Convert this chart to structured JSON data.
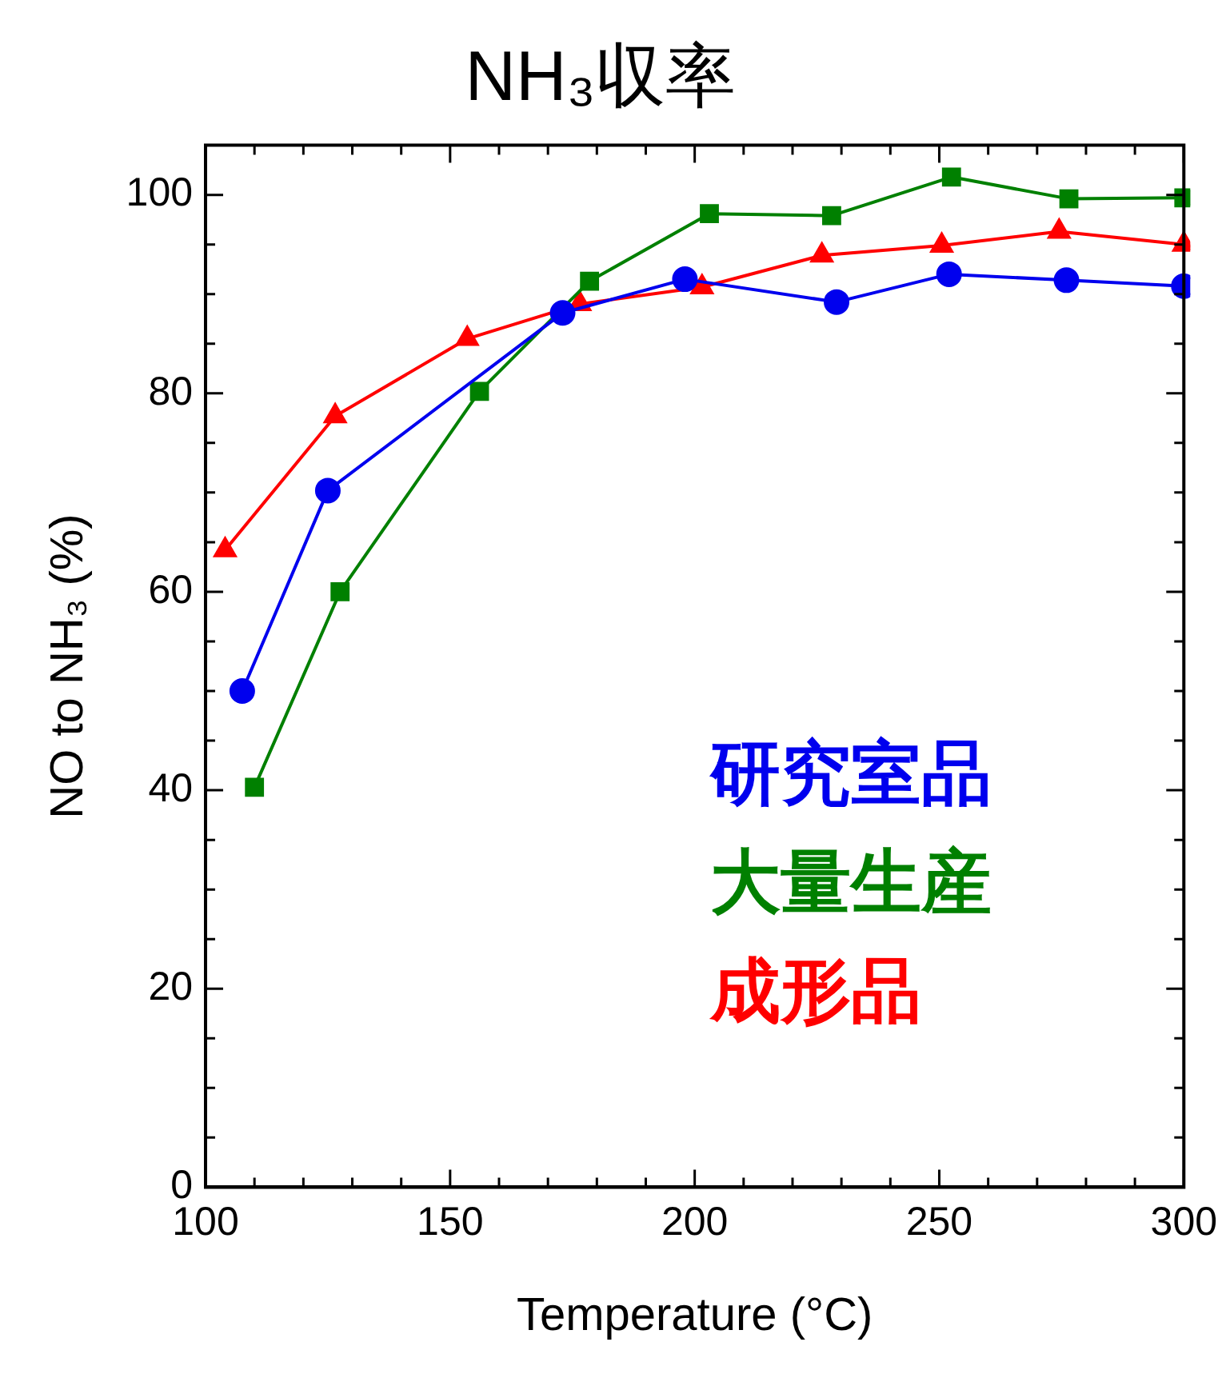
{
  "chart_data": {
    "type": "line",
    "title": "NH₃収率",
    "xlabel": "Temperature (°C)",
    "ylabel": "NO to NH₃ (%)",
    "xlim": [
      100,
      300
    ],
    "ylim": [
      0,
      105
    ],
    "xticks": [
      100,
      {
        "value": 110,
        "label": null
      },
      {
        "value": 120,
        "label": null
      },
      {
        "value": 130,
        "label": null
      },
      {
        "value": 140,
        "label": null
      },
      150,
      {
        "value": 160,
        "label": null
      },
      {
        "value": 170,
        "label": null
      },
      {
        "value": 180,
        "label": null
      },
      {
        "value": 190,
        "label": null
      },
      200,
      {
        "value": 210,
        "label": null
      },
      {
        "value": 220,
        "label": null
      },
      {
        "value": 230,
        "label": null
      },
      {
        "value": 240,
        "label": null
      },
      250,
      {
        "value": 260,
        "label": null
      },
      {
        "value": 270,
        "label": null
      },
      {
        "value": 280,
        "label": null
      },
      {
        "value": 290,
        "label": null
      },
      300
    ],
    "yticks": [
      0,
      {
        "value": 5,
        "label": null
      },
      {
        "value": 10,
        "label": null
      },
      {
        "value": 15,
        "label": null
      },
      20,
      {
        "value": 25,
        "label": null
      },
      {
        "value": 30,
        "label": null
      },
      {
        "value": 35,
        "label": null
      },
      40,
      {
        "value": 45,
        "label": null
      },
      {
        "value": 50,
        "label": null
      },
      {
        "value": 55,
        "label": null
      },
      60,
      {
        "value": 65,
        "label": null
      },
      {
        "value": 70,
        "label": null
      },
      {
        "value": 75,
        "label": null
      },
      80,
      {
        "value": 85,
        "label": null
      },
      {
        "value": 90,
        "label": null
      },
      {
        "value": 95,
        "label": null
      },
      100
    ],
    "legend": "bottom right",
    "line_style": "solid",
    "series": [
      {
        "name": "研究室品",
        "color": "#0000ee",
        "marker": "circle",
        "x": [
          107.5,
          125,
          173,
          198,
          229,
          252,
          276,
          300
        ],
        "values": [
          50,
          70.2,
          88.1,
          91.5,
          89.2,
          92,
          91.4,
          90.8
        ]
      },
      {
        "name": "大量生産",
        "color": "#008000",
        "marker": "square",
        "x": [
          110,
          127.5,
          156,
          178.5,
          203,
          228,
          252.5,
          276.5,
          300
        ],
        "values": [
          40.3,
          60,
          80.2,
          91.3,
          98.1,
          97.9,
          101.8,
          99.6,
          99.7
        ]
      },
      {
        "name": "成形品",
        "color": "#ff0000",
        "marker": "triangle",
        "x": [
          104,
          126.5,
          153.5,
          176.5,
          201.5,
          226,
          250.5,
          274.5,
          300
        ],
        "values": [
          64.2,
          77.7,
          85.5,
          89,
          90.7,
          93.9,
          94.9,
          96.3,
          95
        ]
      }
    ]
  }
}
